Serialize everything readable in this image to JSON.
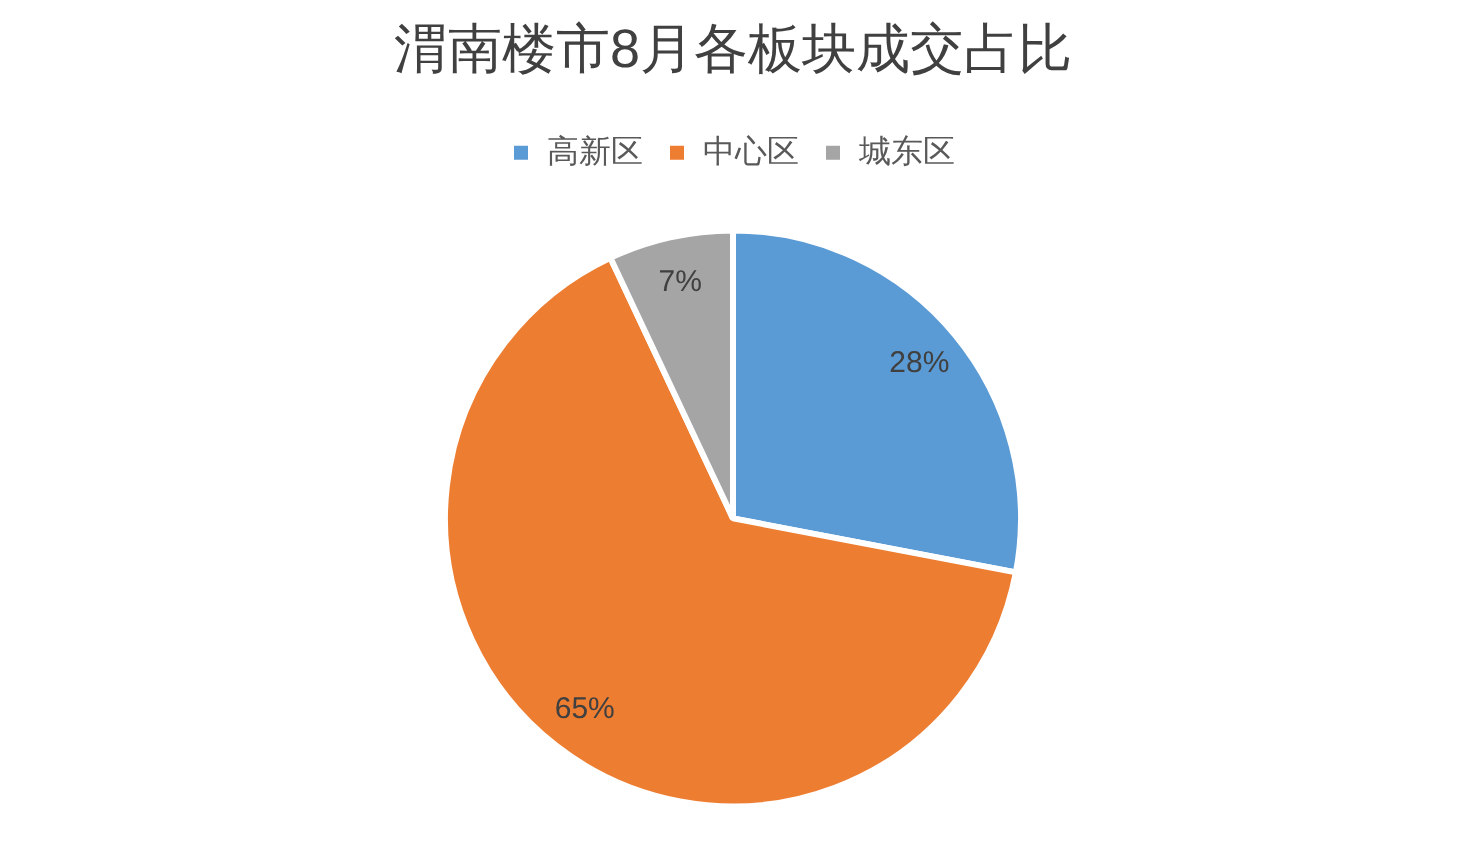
{
  "chart_data": {
    "type": "pie",
    "title": "渭南楼市8月各板块成交占比",
    "categories": [
      "高新区",
      "中心区",
      "城东区"
    ],
    "values": [
      28,
      65,
      7
    ],
    "colors": [
      "#5b9bd5",
      "#ed7d31",
      "#a5a5a5"
    ],
    "value_labels": [
      "28%",
      "65%",
      "7%"
    ],
    "legend": "top"
  }
}
